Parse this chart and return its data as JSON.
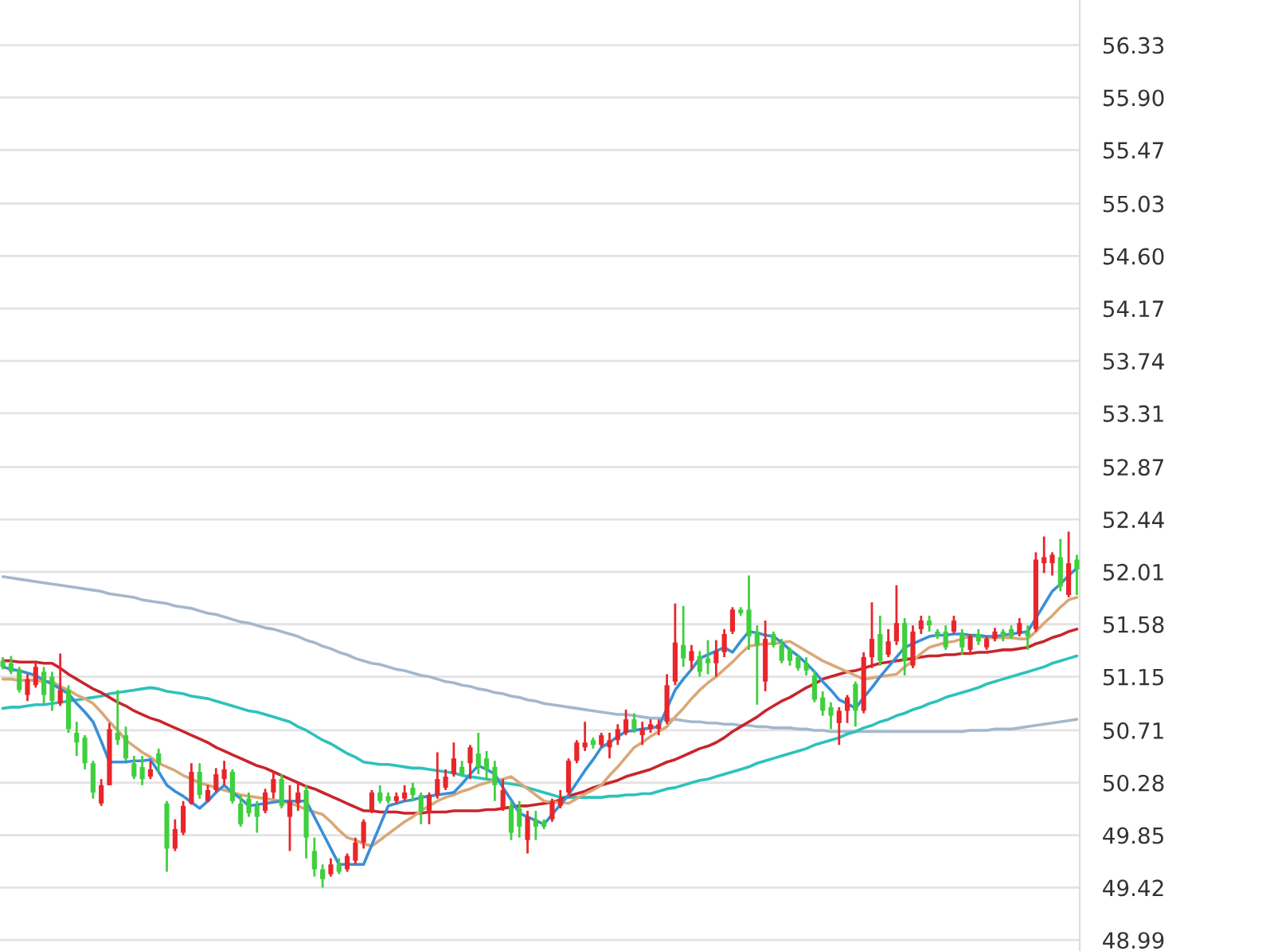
{
  "chart_data": {
    "type": "candlestick",
    "categories": [
      null,
      null,
      null,
      null,
      null,
      null,
      null,
      null,
      null,
      null,
      null,
      null,
      null,
      null,
      null,
      null,
      null,
      null,
      null,
      null,
      null,
      null,
      null,
      null,
      null,
      null,
      null,
      null,
      null,
      null,
      null,
      null,
      null,
      null,
      null,
      null,
      null,
      null,
      null,
      null,
      null,
      null,
      null,
      null,
      null,
      null,
      null,
      null,
      null,
      null,
      null,
      null,
      null,
      null,
      null,
      null,
      null,
      null,
      null,
      null,
      null,
      null,
      null,
      null,
      null,
      null,
      null,
      null,
      null,
      null,
      null,
      null,
      null,
      null,
      null,
      null,
      null,
      null,
      null,
      null,
      null,
      null,
      null,
      null,
      null,
      null,
      null,
      null,
      null,
      null,
      null,
      null,
      null,
      null,
      null,
      null,
      null,
      null,
      null,
      null,
      null,
      null,
      null,
      null,
      null,
      null,
      null,
      null,
      null,
      null,
      null,
      null,
      null,
      null,
      null,
      null,
      null,
      null,
      null,
      null,
      null,
      null,
      null,
      null,
      null,
      null,
      null,
      null,
      null,
      null,
      null,
      null
    ],
    "ohlc": [
      [
        51.28,
        51.31,
        51.21,
        51.23
      ],
      [
        51.26,
        51.32,
        51.17,
        51.19
      ],
      [
        51.21,
        51.23,
        51.02,
        51.04
      ],
      [
        51.0,
        51.17,
        50.95,
        51.13
      ],
      [
        51.08,
        51.28,
        51.06,
        51.23
      ],
      [
        51.19,
        51.23,
        50.93,
        51.0
      ],
      [
        51.15,
        51.19,
        50.87,
        50.95
      ],
      [
        50.93,
        51.34,
        50.91,
        51.04
      ],
      [
        51.04,
        51.08,
        50.69,
        50.72
      ],
      [
        50.69,
        50.78,
        50.5,
        50.61
      ],
      [
        50.65,
        50.67,
        50.39,
        50.44
      ],
      [
        50.44,
        50.46,
        50.15,
        50.2
      ],
      [
        50.11,
        50.31,
        50.09,
        50.26
      ],
      [
        50.26,
        50.77,
        50.26,
        50.72
      ],
      [
        50.69,
        51.04,
        50.59,
        50.63
      ],
      [
        50.67,
        50.74,
        50.46,
        50.48
      ],
      [
        50.44,
        50.5,
        50.31,
        50.33
      ],
      [
        50.41,
        50.5,
        50.26,
        50.31
      ],
      [
        50.33,
        50.46,
        50.31,
        50.39
      ],
      [
        50.52,
        50.56,
        50.37,
        50.44
      ],
      [
        50.11,
        50.13,
        49.55,
        49.74
      ],
      [
        49.74,
        49.98,
        49.72,
        49.9
      ],
      [
        49.87,
        50.13,
        49.85,
        50.09
      ],
      [
        50.11,
        50.44,
        50.1,
        50.37
      ],
      [
        50.37,
        50.44,
        50.15,
        50.18
      ],
      [
        50.13,
        50.26,
        50.12,
        50.22
      ],
      [
        50.22,
        50.4,
        50.2,
        50.35
      ],
      [
        50.31,
        50.46,
        50.26,
        50.39
      ],
      [
        50.37,
        50.39,
        50.11,
        50.13
      ],
      [
        50.11,
        50.18,
        49.92,
        49.94
      ],
      [
        50.15,
        50.2,
        50.0,
        50.03
      ],
      [
        50.09,
        50.13,
        49.87,
        50.0
      ],
      [
        50.05,
        50.23,
        50.03,
        50.2
      ],
      [
        50.2,
        50.37,
        50.15,
        50.31
      ],
      [
        50.31,
        50.35,
        50.07,
        50.09
      ],
      [
        50.0,
        50.26,
        49.72,
        50.13
      ],
      [
        50.11,
        50.28,
        50.05,
        50.2
      ],
      [
        50.22,
        50.26,
        49.66,
        49.83
      ],
      [
        49.72,
        49.83,
        49.51,
        49.57
      ],
      [
        49.57,
        49.61,
        49.42,
        49.49
      ],
      [
        49.53,
        49.66,
        49.51,
        49.61
      ],
      [
        49.61,
        49.66,
        49.53,
        49.55
      ],
      [
        49.57,
        49.7,
        49.55,
        49.68
      ],
      [
        49.64,
        49.83,
        49.61,
        49.79
      ],
      [
        49.79,
        49.98,
        49.74,
        49.96
      ],
      [
        50.05,
        50.22,
        50.03,
        50.2
      ],
      [
        50.2,
        50.26,
        50.11,
        50.13
      ],
      [
        50.17,
        50.2,
        50.11,
        50.13
      ],
      [
        50.13,
        50.2,
        50.11,
        50.17
      ],
      [
        50.15,
        50.26,
        50.13,
        50.2
      ],
      [
        50.24,
        50.28,
        50.13,
        50.18
      ],
      [
        50.18,
        50.2,
        49.94,
        50.05
      ],
      [
        50.03,
        50.2,
        49.94,
        50.18
      ],
      [
        50.18,
        50.53,
        50.15,
        50.31
      ],
      [
        50.24,
        50.39,
        50.22,
        50.33
      ],
      [
        50.35,
        50.61,
        50.33,
        50.48
      ],
      [
        50.41,
        50.46,
        50.33,
        50.35
      ],
      [
        50.44,
        50.59,
        50.31,
        50.57
      ],
      [
        50.52,
        50.69,
        50.35,
        50.41
      ],
      [
        50.48,
        50.54,
        50.31,
        50.39
      ],
      [
        50.41,
        50.46,
        50.13,
        50.26
      ],
      [
        50.07,
        50.31,
        50.05,
        50.22
      ],
      [
        50.09,
        50.13,
        49.81,
        49.87
      ],
      [
        50.07,
        50.13,
        49.83,
        49.92
      ],
      [
        49.81,
        50.05,
        49.7,
        50.0
      ],
      [
        49.98,
        50.05,
        49.81,
        49.92
      ],
      [
        49.96,
        49.98,
        49.9,
        49.92
      ],
      [
        49.98,
        50.15,
        49.96,
        50.13
      ],
      [
        50.09,
        50.22,
        50.07,
        50.15
      ],
      [
        50.2,
        50.48,
        50.18,
        50.46
      ],
      [
        50.46,
        50.63,
        50.44,
        50.61
      ],
      [
        50.57,
        50.78,
        50.54,
        50.61
      ],
      [
        50.63,
        50.65,
        50.56,
        50.59
      ],
      [
        50.59,
        50.69,
        50.57,
        50.67
      ],
      [
        50.57,
        50.69,
        50.48,
        50.63
      ],
      [
        50.63,
        50.76,
        50.59,
        50.72
      ],
      [
        50.69,
        50.88,
        50.67,
        50.8
      ],
      [
        50.8,
        50.85,
        50.69,
        50.72
      ],
      [
        50.67,
        50.78,
        50.59,
        50.72
      ],
      [
        50.72,
        50.8,
        50.69,
        50.76
      ],
      [
        50.72,
        50.8,
        50.67,
        50.76
      ],
      [
        50.78,
        51.17,
        50.76,
        51.08
      ],
      [
        51.11,
        51.75,
        51.08,
        51.43
      ],
      [
        51.41,
        51.73,
        51.23,
        51.3
      ],
      [
        51.28,
        51.41,
        51.21,
        51.36
      ],
      [
        51.32,
        51.36,
        51.15,
        51.19
      ],
      [
        51.3,
        51.45,
        51.17,
        51.26
      ],
      [
        51.26,
        51.45,
        51.15,
        51.36
      ],
      [
        51.35,
        51.54,
        51.31,
        51.5
      ],
      [
        51.52,
        51.72,
        51.5,
        51.7
      ],
      [
        51.7,
        51.72,
        51.65,
        51.67
      ],
      [
        51.7,
        51.98,
        51.37,
        51.48
      ],
      [
        51.52,
        51.57,
        50.92,
        51.41
      ],
      [
        51.11,
        51.61,
        51.03,
        51.46
      ],
      [
        51.5,
        51.52,
        51.39,
        51.41
      ],
      [
        51.41,
        51.46,
        51.26,
        51.28
      ],
      [
        51.37,
        51.39,
        51.24,
        51.28
      ],
      [
        51.31,
        51.33,
        51.2,
        51.22
      ],
      [
        51.26,
        51.31,
        51.16,
        51.2
      ],
      [
        51.16,
        51.2,
        50.94,
        50.96
      ],
      [
        50.98,
        51.03,
        50.83,
        50.87
      ],
      [
        50.9,
        50.94,
        50.72,
        50.83
      ],
      [
        50.77,
        50.9,
        50.59,
        50.87
      ],
      [
        50.87,
        51.0,
        50.77,
        50.98
      ],
      [
        51.09,
        51.11,
        50.74,
        50.87
      ],
      [
        50.87,
        51.35,
        50.85,
        51.31
      ],
      [
        51.31,
        51.76,
        51.22,
        51.46
      ],
      [
        51.5,
        51.65,
        51.24,
        51.28
      ],
      [
        51.33,
        51.54,
        51.31,
        51.44
      ],
      [
        51.44,
        51.9,
        51.41,
        51.59
      ],
      [
        51.59,
        51.63,
        51.16,
        51.28
      ],
      [
        51.24,
        51.57,
        51.22,
        51.52
      ],
      [
        51.54,
        51.65,
        51.5,
        51.61
      ],
      [
        51.61,
        51.65,
        51.52,
        51.57
      ],
      [
        51.52,
        51.54,
        51.46,
        51.48
      ],
      [
        51.52,
        51.57,
        51.37,
        51.39
      ],
      [
        51.52,
        51.65,
        51.5,
        51.61
      ],
      [
        51.5,
        51.54,
        51.33,
        51.39
      ],
      [
        51.37,
        51.5,
        51.33,
        51.48
      ],
      [
        51.5,
        51.54,
        51.41,
        51.44
      ],
      [
        51.39,
        51.48,
        51.37,
        51.46
      ],
      [
        51.46,
        51.55,
        51.44,
        51.52
      ],
      [
        51.52,
        51.54,
        51.44,
        51.48
      ],
      [
        51.54,
        51.57,
        51.46,
        51.48
      ],
      [
        51.5,
        51.63,
        51.48,
        51.59
      ],
      [
        51.52,
        51.57,
        51.37,
        51.48
      ],
      [
        51.54,
        52.17,
        51.52,
        52.11
      ],
      [
        52.08,
        52.3,
        52.0,
        52.13
      ],
      [
        52.08,
        52.17,
        51.98,
        52.15
      ],
      [
        52.13,
        52.28,
        51.85,
        51.89
      ],
      [
        51.82,
        52.34,
        51.8,
        52.08
      ],
      [
        52.11,
        52.15,
        51.82,
        52.03
      ]
    ],
    "colors": [
      "#3fcf3f",
      "#3fcf3f",
      "#3fcf3f",
      "#e8262b",
      "#e8262b",
      "#3fcf3f",
      "#3fcf3f",
      "#e8262b",
      "#3fcf3f",
      "#3fcf3f",
      "#3fcf3f",
      "#3fcf3f",
      "#e8262b",
      "#e8262b",
      "#3fcf3f",
      "#3fcf3f",
      "#3fcf3f",
      "#3fcf3f",
      "#e8262b",
      "#3fcf3f",
      "#3fcf3f",
      "#e8262b",
      "#e8262b",
      "#e8262b",
      "#3fcf3f",
      "#e8262b",
      "#e8262b",
      "#e8262b",
      "#3fcf3f",
      "#3fcf3f",
      "#3fcf3f",
      "#3fcf3f",
      "#e8262b",
      "#e8262b",
      "#3fcf3f",
      "#e8262b",
      "#e8262b",
      "#3fcf3f",
      "#3fcf3f",
      "#3fcf3f",
      "#e8262b",
      "#3fcf3f",
      "#e8262b",
      "#e8262b",
      "#e8262b",
      "#e8262b",
      "#3fcf3f",
      "#3fcf3f",
      "#e8262b",
      "#e8262b",
      "#3fcf3f",
      "#3fcf3f",
      "#e8262b",
      "#e8262b",
      "#e8262b",
      "#e8262b",
      "#3fcf3f",
      "#e8262b",
      "#3fcf3f",
      "#3fcf3f",
      "#3fcf3f",
      "#e8262b",
      "#3fcf3f",
      "#3fcf3f",
      "#e8262b",
      "#3fcf3f",
      "#3fcf3f",
      "#e8262b",
      "#e8262b",
      "#e8262b",
      "#e8262b",
      "#e8262b",
      "#3fcf3f",
      "#e8262b",
      "#e8262b",
      "#e8262b",
      "#e8262b",
      "#3fcf3f",
      "#e8262b",
      "#e8262b",
      "#e8262b",
      "#e8262b",
      "#e8262b",
      "#3fcf3f",
      "#e8262b",
      "#3fcf3f",
      "#3fcf3f",
      "#e8262b",
      "#e8262b",
      "#e8262b",
      "#3fcf3f",
      "#3fcf3f",
      "#3fcf3f",
      "#e8262b",
      "#3fcf3f",
      "#3fcf3f",
      "#3fcf3f",
      "#3fcf3f",
      "#3fcf3f",
      "#3fcf3f",
      "#3fcf3f",
      "#3fcf3f",
      "#e8262b",
      "#e8262b",
      "#3fcf3f",
      "#e8262b",
      "#e8262b",
      "#3fcf3f",
      "#e8262b",
      "#e8262b",
      "#3fcf3f",
      "#e8262b",
      "#e8262b",
      "#3fcf3f",
      "#3fcf3f",
      "#3fcf3f",
      "#e8262b",
      "#3fcf3f",
      "#e8262b",
      "#3fcf3f",
      "#e8262b",
      "#e8262b",
      "#3fcf3f",
      "#3fcf3f",
      "#e8262b",
      "#3fcf3f",
      "#e8262b",
      "#e8262b",
      "#e8262b",
      "#3fcf3f",
      "#e8262b",
      "#3fcf3f"
    ],
    "series": [
      {
        "type": "line",
        "color": "#a3b8cc",
        "values": [
          51.97,
          51.96,
          51.95,
          51.94,
          51.93,
          51.92,
          51.91,
          51.9,
          51.89,
          51.88,
          51.87,
          51.86,
          51.85,
          51.83,
          51.82,
          51.81,
          51.8,
          51.78,
          51.77,
          51.76,
          51.75,
          51.73,
          51.72,
          51.71,
          51.69,
          51.67,
          51.66,
          51.64,
          51.62,
          51.6,
          51.59,
          51.57,
          51.55,
          51.54,
          51.52,
          51.5,
          51.48,
          51.45,
          51.43,
          51.4,
          51.38,
          51.35,
          51.33,
          51.3,
          51.28,
          51.26,
          51.25,
          51.23,
          51.21,
          51.2,
          51.18,
          51.16,
          51.15,
          51.13,
          51.11,
          51.1,
          51.08,
          51.07,
          51.05,
          51.04,
          51.02,
          51.01,
          50.99,
          50.98,
          50.96,
          50.95,
          50.93,
          50.92,
          50.91,
          50.9,
          50.89,
          50.88,
          50.87,
          50.86,
          50.85,
          50.84,
          50.84,
          50.83,
          50.82,
          50.81,
          50.81,
          50.8,
          50.8,
          50.79,
          50.78,
          50.78,
          50.77,
          50.77,
          50.76,
          50.76,
          50.75,
          50.75,
          50.74,
          50.74,
          50.73,
          50.73,
          50.73,
          50.72,
          50.72,
          50.71,
          50.71,
          50.7,
          50.7,
          50.7,
          50.7,
          50.7,
          50.7,
          50.7,
          50.7,
          50.7,
          50.7,
          50.7,
          50.7,
          50.7,
          50.7,
          50.7,
          50.7,
          50.7,
          50.71,
          50.71,
          50.71,
          50.72,
          50.72,
          50.72,
          50.73,
          50.74,
          50.75,
          50.76,
          50.77,
          50.78,
          50.79,
          50.8
        ]
      },
      {
        "type": "line",
        "color": "#2dc2bb",
        "values": [
          50.89,
          50.9,
          50.9,
          50.91,
          50.92,
          50.92,
          50.93,
          50.94,
          50.95,
          50.96,
          50.97,
          50.98,
          50.99,
          51.01,
          51.02,
          51.03,
          51.04,
          51.05,
          51.06,
          51.05,
          51.03,
          51.02,
          51.01,
          50.99,
          50.98,
          50.97,
          50.95,
          50.93,
          50.91,
          50.89,
          50.87,
          50.86,
          50.84,
          50.82,
          50.8,
          50.78,
          50.74,
          50.71,
          50.67,
          50.63,
          50.6,
          50.56,
          50.52,
          50.49,
          50.45,
          50.44,
          50.43,
          50.43,
          50.42,
          50.41,
          50.4,
          50.4,
          50.39,
          50.38,
          50.37,
          50.36,
          50.34,
          50.33,
          50.32,
          50.31,
          50.3,
          50.28,
          50.27,
          50.26,
          50.24,
          50.22,
          50.2,
          50.18,
          50.16,
          50.16,
          50.16,
          50.16,
          50.16,
          50.16,
          50.17,
          50.17,
          50.18,
          50.18,
          50.19,
          50.19,
          50.21,
          50.23,
          50.24,
          50.26,
          50.28,
          50.3,
          50.31,
          50.33,
          50.35,
          50.37,
          50.39,
          50.41,
          50.44,
          50.46,
          50.48,
          50.5,
          50.52,
          50.54,
          50.56,
          50.59,
          50.61,
          50.63,
          50.65,
          50.68,
          50.7,
          50.73,
          50.75,
          50.78,
          50.8,
          50.83,
          50.85,
          50.88,
          50.9,
          50.93,
          50.95,
          50.98,
          51.0,
          51.02,
          51.04,
          51.06,
          51.09,
          51.11,
          51.13,
          51.15,
          51.17,
          51.19,
          51.21,
          51.23,
          51.26,
          51.28,
          51.3,
          51.32
        ]
      },
      {
        "type": "line",
        "color": "#c9252c",
        "values": [
          51.28,
          51.28,
          51.27,
          51.27,
          51.27,
          51.26,
          51.26,
          51.22,
          51.17,
          51.13,
          51.09,
          51.05,
          51.02,
          50.98,
          50.94,
          50.91,
          50.87,
          50.84,
          50.81,
          50.79,
          50.76,
          50.73,
          50.7,
          50.67,
          50.64,
          50.61,
          50.57,
          50.54,
          50.51,
          50.48,
          50.45,
          50.42,
          50.4,
          50.37,
          50.34,
          50.31,
          50.28,
          50.25,
          50.23,
          50.2,
          50.17,
          50.14,
          50.11,
          50.08,
          50.05,
          50.05,
          50.04,
          50.04,
          50.04,
          50.03,
          50.03,
          50.03,
          50.04,
          50.04,
          50.04,
          50.05,
          50.05,
          50.05,
          50.05,
          50.06,
          50.06,
          50.07,
          50.08,
          50.09,
          50.09,
          50.1,
          50.11,
          50.12,
          50.14,
          50.17,
          50.19,
          50.21,
          50.24,
          50.26,
          50.28,
          50.3,
          50.33,
          50.35,
          50.37,
          50.39,
          50.42,
          50.45,
          50.47,
          50.5,
          50.53,
          50.56,
          50.58,
          50.61,
          50.65,
          50.7,
          50.74,
          50.78,
          50.82,
          50.87,
          50.91,
          50.95,
          50.98,
          51.02,
          51.06,
          51.09,
          51.13,
          51.15,
          51.17,
          51.19,
          51.2,
          51.22,
          51.24,
          51.26,
          51.27,
          51.28,
          51.29,
          51.3,
          51.31,
          51.32,
          51.32,
          51.33,
          51.33,
          51.34,
          51.34,
          51.35,
          51.35,
          51.36,
          51.37,
          51.37,
          51.38,
          51.39,
          51.42,
          51.44,
          51.47,
          51.49,
          51.52,
          51.54
        ]
      },
      {
        "type": "line",
        "color": "#d9a877",
        "values": [
          51.13,
          51.13,
          51.12,
          51.12,
          51.12,
          51.11,
          51.11,
          51.07,
          51.04,
          51.0,
          50.97,
          50.93,
          50.86,
          50.78,
          50.71,
          50.63,
          50.58,
          50.53,
          50.49,
          50.44,
          50.41,
          50.38,
          50.34,
          50.31,
          50.28,
          50.26,
          50.24,
          50.22,
          50.2,
          50.18,
          50.17,
          50.16,
          50.15,
          50.14,
          50.13,
          50.11,
          50.09,
          50.06,
          50.04,
          50.02,
          49.96,
          49.89,
          49.83,
          49.81,
          49.78,
          49.76,
          49.81,
          49.86,
          49.91,
          49.96,
          50.0,
          50.05,
          50.09,
          50.13,
          50.16,
          50.18,
          50.21,
          50.23,
          50.26,
          50.28,
          50.3,
          50.31,
          50.33,
          50.28,
          50.23,
          50.18,
          50.13,
          50.12,
          50.12,
          50.11,
          50.15,
          50.19,
          50.22,
          50.26,
          50.34,
          50.41,
          50.49,
          50.57,
          50.61,
          50.66,
          50.7,
          50.74,
          50.82,
          50.89,
          50.97,
          51.04,
          51.1,
          51.15,
          51.21,
          51.27,
          51.34,
          51.4,
          51.41,
          51.42,
          51.42,
          51.43,
          51.44,
          51.4,
          51.36,
          51.32,
          51.28,
          51.25,
          51.22,
          51.19,
          51.16,
          51.13,
          51.14,
          51.15,
          51.16,
          51.17,
          51.23,
          51.28,
          51.34,
          51.39,
          51.41,
          51.43,
          51.44,
          51.46,
          51.48,
          51.48,
          51.47,
          51.47,
          51.47,
          51.47,
          51.46,
          51.46,
          51.52,
          51.59,
          51.65,
          51.72,
          51.78,
          51.8
        ]
      },
      {
        "type": "line",
        "color": "#3a8fd8",
        "values": [
          51.23,
          51.21,
          51.2,
          51.18,
          51.16,
          51.12,
          51.09,
          51.05,
          51.01,
          50.93,
          50.86,
          50.78,
          50.62,
          50.45,
          50.45,
          50.45,
          50.46,
          50.46,
          50.47,
          50.37,
          50.26,
          50.21,
          50.17,
          50.12,
          50.07,
          50.13,
          50.2,
          50.26,
          50.2,
          50.15,
          50.09,
          50.1,
          50.11,
          50.12,
          50.13,
          50.13,
          50.13,
          50.13,
          50.0,
          49.87,
          49.74,
          49.61,
          49.61,
          49.61,
          49.61,
          49.77,
          49.93,
          50.09,
          50.11,
          50.13,
          50.14,
          50.16,
          50.17,
          50.18,
          50.19,
          50.2,
          50.27,
          50.35,
          50.42,
          50.39,
          50.35,
          50.24,
          50.14,
          50.03,
          50.0,
          49.97,
          49.94,
          50.02,
          50.1,
          50.18,
          50.28,
          50.38,
          50.47,
          50.57,
          50.61,
          50.66,
          50.7,
          50.71,
          50.72,
          50.73,
          50.74,
          50.89,
          51.04,
          51.13,
          51.21,
          51.3,
          51.33,
          51.36,
          51.39,
          51.35,
          51.44,
          51.52,
          51.51,
          51.49,
          51.48,
          51.43,
          51.37,
          51.32,
          51.26,
          51.19,
          51.11,
          51.04,
          50.96,
          50.93,
          50.89,
          50.98,
          51.06,
          51.15,
          51.23,
          51.31,
          51.39,
          51.42,
          51.45,
          51.48,
          51.49,
          51.49,
          51.5,
          51.5,
          51.49,
          51.49,
          51.48,
          51.48,
          51.49,
          51.5,
          51.51,
          51.52,
          51.63,
          51.74,
          51.85,
          51.91,
          51.98,
          52.04
        ]
      }
    ],
    "ylim": [
      48.9,
      56.7
    ],
    "yticks": [
      56.33,
      {
        "value": 55.9,
        "label": "55.90"
      },
      55.47,
      55.03,
      {
        "value": 54.6,
        "label": "54.60"
      },
      54.17,
      53.74,
      53.31,
      52.87,
      52.44,
      52.01,
      51.58,
      51.15,
      50.71,
      50.28,
      49.85,
      49.42,
      48.99
    ],
    "grid": "y",
    "tick_labels": "y"
  }
}
